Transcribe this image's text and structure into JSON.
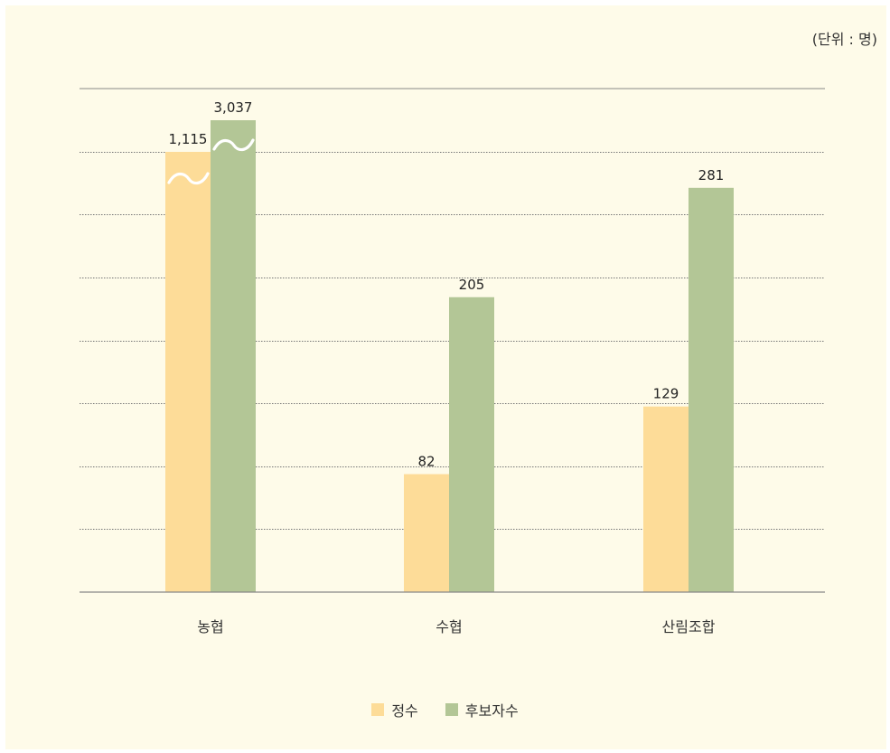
{
  "unit_label": "(단위 : 명)",
  "colors": {
    "background": "#fefbe9",
    "series1": "#fddc98",
    "series2": "#b3c696",
    "axis": "#888888",
    "grid": "#777777"
  },
  "chart_data": {
    "type": "bar",
    "categories": [
      "농협",
      "수협",
      "산림조합"
    ],
    "series": [
      {
        "name": "정수",
        "values": [
          1115,
          82,
          129
        ],
        "labels": [
          "1,115",
          "82",
          "129"
        ]
      },
      {
        "name": "후보자수",
        "values": [
          3037,
          205,
          281
        ],
        "labels": [
          "3,037",
          "205",
          "281"
        ]
      }
    ],
    "ylim": [
      0,
      350
    ],
    "axis_break": true,
    "broken_category": "농협",
    "grid": true,
    "legend_position": "bottom-center",
    "unit": "(단위 : 명)"
  }
}
